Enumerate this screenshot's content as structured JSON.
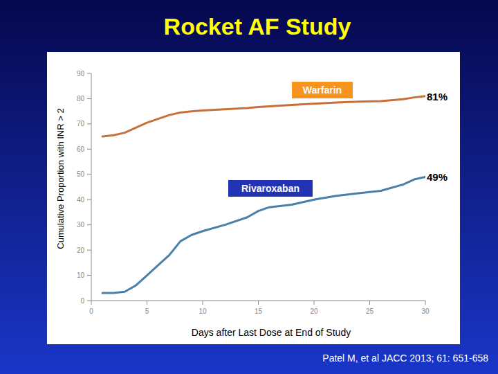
{
  "chart_data": {
    "type": "line",
    "title": "Rocket AF Study",
    "y_label": "Cumulative Proportion with INR > 2",
    "x_label": "Days after Last Dose at End of Study",
    "x": [
      1,
      2,
      3,
      4,
      5,
      6,
      7,
      8,
      9,
      10,
      12,
      14,
      15,
      16,
      18,
      20,
      22,
      24,
      26,
      28,
      29,
      30
    ],
    "series": [
      {
        "name": "Warfarin",
        "color": "#c8703a",
        "values": [
          65,
          65.5,
          66.5,
          68.5,
          70.5,
          72,
          73.5,
          74.5,
          75,
          75.3,
          75.8,
          76.3,
          76.7,
          77,
          77.5,
          78,
          78.5,
          78.8,
          79,
          79.8,
          80.5,
          81
        ]
      },
      {
        "name": "Rivaroxaban",
        "color": "#4a7fa8",
        "values": [
          3,
          3,
          3.5,
          6,
          10,
          14,
          18,
          23.5,
          26,
          27.5,
          30,
          33,
          35.5,
          37,
          38,
          40,
          41.5,
          42.5,
          43.5,
          46,
          48,
          49
        ]
      }
    ],
    "annotations": [
      "81%",
      "49%"
    ],
    "source": "Patel M, et al JACC 2013; 61: 651-658",
    "xlim": [
      0,
      30
    ],
    "ylim": [
      0,
      90
    ],
    "xticks": [
      0,
      5,
      10,
      15,
      20,
      25,
      30
    ],
    "yticks": [
      0,
      10,
      20,
      30,
      40,
      50,
      60,
      70,
      80,
      90
    ],
    "grid": false
  }
}
